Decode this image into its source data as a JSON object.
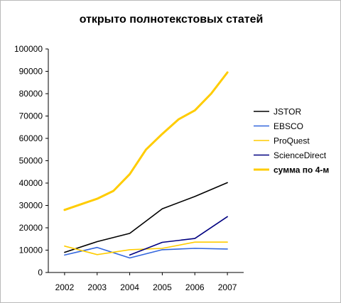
{
  "chart_data": {
    "type": "line",
    "title": "открыто полнотекстовых статей",
    "xlabel": "",
    "ylabel": "",
    "x": [
      "2002",
      "2003",
      "2004",
      "2005",
      "2006",
      "2007"
    ],
    "ylim": [
      0,
      100000
    ],
    "yticks": [
      "0",
      "10000",
      "20000",
      "30000",
      "40000",
      "50000",
      "60000",
      "70000",
      "80000",
      "90000",
      "100000"
    ],
    "grid": false,
    "legend_position": "right",
    "series": [
      {
        "name": "JSTOR",
        "color": "#000000",
        "bold": false,
        "points": [
          [
            2002.0,
            9000
          ],
          [
            2003.0,
            13800
          ],
          [
            2004.0,
            17500
          ],
          [
            2004.5,
            23000
          ],
          [
            2005.0,
            28500
          ],
          [
            2006.0,
            34000
          ],
          [
            2007.0,
            40200
          ]
        ]
      },
      {
        "name": "EBSCO",
        "color": "#3366dd",
        "bold": false,
        "points": [
          [
            2002.0,
            7800
          ],
          [
            2003.0,
            11200
          ],
          [
            2004.0,
            6500
          ],
          [
            2005.0,
            10200
          ],
          [
            2006.0,
            10800
          ],
          [
            2007.0,
            10500
          ]
        ]
      },
      {
        "name": "ProQuest",
        "color": "#ffcc00",
        "bold": false,
        "points": [
          [
            2002.0,
            11800
          ],
          [
            2003.0,
            8000
          ],
          [
            2004.0,
            10200
          ],
          [
            2005.0,
            10800
          ],
          [
            2006.0,
            13600
          ],
          [
            2007.0,
            13600
          ]
        ]
      },
      {
        "name": "ScienceDirect",
        "color": "#000080",
        "bold": false,
        "points": [
          [
            2004.0,
            7800
          ],
          [
            2005.0,
            13500
          ],
          [
            2006.0,
            15200
          ],
          [
            2007.0,
            25000
          ]
        ]
      },
      {
        "name": "сумма по 4-м",
        "color": "#ffcc00",
        "bold": true,
        "points": [
          [
            2002.0,
            28000
          ],
          [
            2002.5,
            30500
          ],
          [
            2003.0,
            33000
          ],
          [
            2003.5,
            36500
          ],
          [
            2004.0,
            44000
          ],
          [
            2004.5,
            55000
          ],
          [
            2005.0,
            62000
          ],
          [
            2005.5,
            68500
          ],
          [
            2006.0,
            72500
          ],
          [
            2006.5,
            80000
          ],
          [
            2007.0,
            89500
          ]
        ]
      }
    ]
  }
}
